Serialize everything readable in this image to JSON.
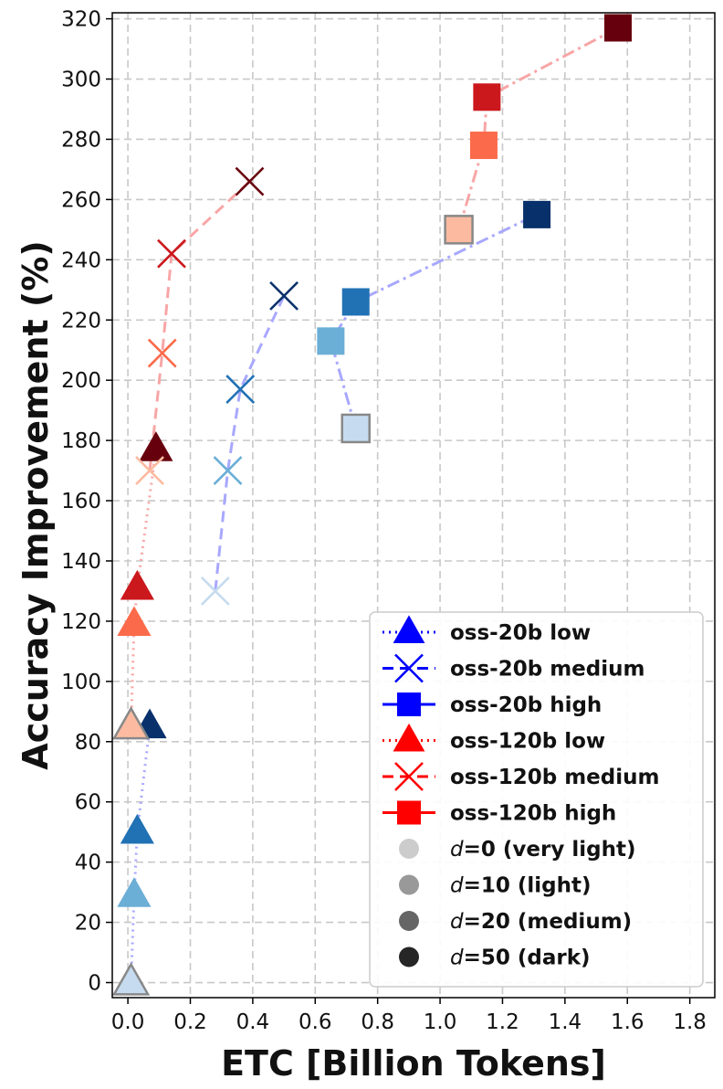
{
  "chart_data": {
    "type": "scatter",
    "title": "",
    "xlabel": "ETC [Billion Tokens]",
    "ylabel": "Accuracy Improvement (%)",
    "xlim": [
      -0.05,
      1.88
    ],
    "ylim": [
      -5,
      322
    ],
    "xticks": [
      "0.0",
      "0.2",
      "0.4",
      "0.6",
      "0.8",
      "1.0",
      "1.2",
      "1.4",
      "1.6",
      "1.8"
    ],
    "yticks": [
      "0",
      "20",
      "40",
      "60",
      "80",
      "100",
      "120",
      "140",
      "160",
      "180",
      "200",
      "220",
      "240",
      "260",
      "280",
      "300",
      "320"
    ],
    "grid": true,
    "legend_position": "lower-right",
    "series": [
      {
        "name": "oss-20b low",
        "marker": "triangle",
        "line": "dotted",
        "line_color": "#a8a8ff",
        "points": [
          {
            "d": 0,
            "x": 0.01,
            "y": 0
          },
          {
            "d": 10,
            "x": 0.02,
            "y": 29
          },
          {
            "d": 20,
            "x": 0.03,
            "y": 50
          },
          {
            "d": 50,
            "x": 0.07,
            "y": 85
          }
        ]
      },
      {
        "name": "oss-20b medium",
        "marker": "x",
        "line": "dashed",
        "line_color": "#a8a8ff",
        "points": [
          {
            "d": 0,
            "x": 0.28,
            "y": 130
          },
          {
            "d": 10,
            "x": 0.32,
            "y": 170
          },
          {
            "d": 20,
            "x": 0.36,
            "y": 197
          },
          {
            "d": 50,
            "x": 0.5,
            "y": 228
          }
        ]
      },
      {
        "name": "oss-20b high",
        "marker": "square",
        "line": "dashdot",
        "line_color": "#a8a8ff",
        "points": [
          {
            "d": 0,
            "x": 0.73,
            "y": 184
          },
          {
            "d": 10,
            "x": 0.65,
            "y": 213
          },
          {
            "d": 20,
            "x": 0.73,
            "y": 226
          },
          {
            "d": 50,
            "x": 1.31,
            "y": 255
          }
        ]
      },
      {
        "name": "oss-120b low",
        "marker": "triangle",
        "line": "dotted",
        "line_color": "#f8a6a6",
        "points": [
          {
            "d": 0,
            "x": 0.01,
            "y": 85
          },
          {
            "d": 10,
            "x": 0.02,
            "y": 119
          },
          {
            "d": 20,
            "x": 0.03,
            "y": 131
          },
          {
            "d": 50,
            "x": 0.09,
            "y": 177
          }
        ]
      },
      {
        "name": "oss-120b medium",
        "marker": "x",
        "line": "dashed",
        "line_color": "#f8a6a6",
        "points": [
          {
            "d": 0,
            "x": 0.07,
            "y": 170
          },
          {
            "d": 10,
            "x": 0.11,
            "y": 209
          },
          {
            "d": 20,
            "x": 0.14,
            "y": 242
          },
          {
            "d": 50,
            "x": 0.39,
            "y": 266
          }
        ]
      },
      {
        "name": "oss-120b high",
        "marker": "square",
        "line": "dashdot",
        "line_color": "#f8a6a6",
        "points": [
          {
            "d": 0,
            "x": 1.06,
            "y": 250
          },
          {
            "d": 10,
            "x": 1.14,
            "y": 278
          },
          {
            "d": 20,
            "x": 1.15,
            "y": 294
          },
          {
            "d": 50,
            "x": 1.57,
            "y": 317
          }
        ]
      }
    ],
    "color_scale": {
      "blue": {
        "0": "#c6dbef",
        "10": "#6baed6",
        "20": "#2171b5",
        "50": "#08306b"
      },
      "red": {
        "0": "#fcbba1",
        "10": "#fb6a4a",
        "20": "#cb181d",
        "50": "#67000d"
      }
    },
    "legend": {
      "series": [
        {
          "label": "oss-20b low",
          "marker": "triangle",
          "line": "dotted",
          "color": "#0000ff"
        },
        {
          "label": "oss-20b medium",
          "marker": "x",
          "line": "dashed",
          "color": "#0000ff"
        },
        {
          "label": "oss-20b high",
          "marker": "square",
          "line": "solid",
          "color": "#0000ff"
        },
        {
          "label": "oss-120b low",
          "marker": "triangle",
          "line": "dotted",
          "color": "#ff0000"
        },
        {
          "label": "oss-120b medium",
          "marker": "x",
          "line": "dashed",
          "color": "#ff0000"
        },
        {
          "label": "oss-120b high",
          "marker": "square",
          "line": "solid",
          "color": "#ff0000"
        }
      ],
      "shades": [
        {
          "var": "d",
          "rest": "=0 (very light)",
          "color": "#cccccc"
        },
        {
          "var": "d",
          "rest": "=10 (light)",
          "color": "#999999"
        },
        {
          "var": "d",
          "rest": "=20 (medium)",
          "color": "#666666"
        },
        {
          "var": "d",
          "rest": "=50 (dark)",
          "color": "#262626"
        }
      ]
    }
  }
}
